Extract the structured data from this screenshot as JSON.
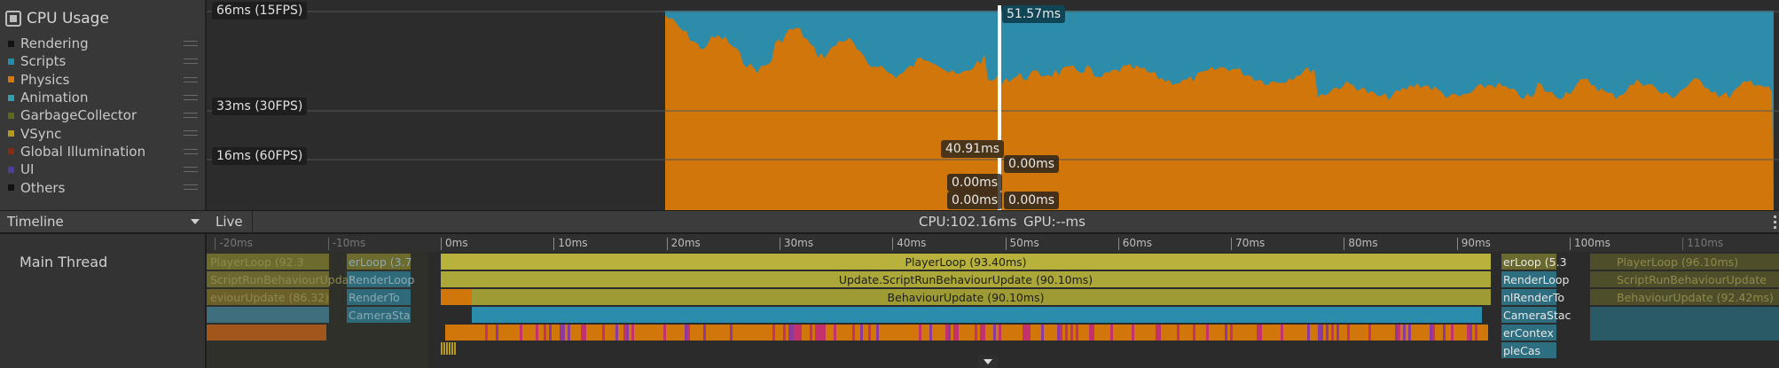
{
  "module": {
    "title": "CPU Usage",
    "icon": "cpu-icon"
  },
  "legend": [
    {
      "label": "Rendering",
      "color": "#111111"
    },
    {
      "label": "Scripts",
      "color": "#1f8fab"
    },
    {
      "label": "Physics",
      "color": "#d3790a"
    },
    {
      "label": "Animation",
      "color": "#30a0b0"
    },
    {
      "label": "GarbageCollector",
      "color": "#5d6a1e"
    },
    {
      "label": "VSync",
      "color": "#b59a1c"
    },
    {
      "label": "Global Illumination",
      "color": "#8b2a12"
    },
    {
      "label": "UI",
      "color": "#4b3e9e"
    },
    {
      "label": "Others",
      "color": "#111111"
    }
  ],
  "chart": {
    "gridlines": [
      {
        "label": "66ms (15FPS)",
        "ms": 66
      },
      {
        "label": "33ms (30FPS)",
        "ms": 33
      },
      {
        "label": "16ms (60FPS)",
        "ms": 16
      }
    ],
    "selection_labels": {
      "scripts": "51.57ms",
      "physics": "40.91ms",
      "zero_a": "0.00ms",
      "zero_b": "0.00ms",
      "zero_c": "0.00ms",
      "zero_d": "0.00ms"
    },
    "colors": {
      "scripts": "#2e8cab",
      "physics": "#d0760a",
      "background": "#2c2c2c",
      "selection": "#ffffff"
    }
  },
  "toolbar": {
    "view_mode": "Timeline",
    "live_label": "Live",
    "cpu_label": "CPU:102.16ms",
    "gpu_label": "GPU:--ms"
  },
  "timeline": {
    "thread_name": "Main Thread",
    "ticks": [
      "-20ms",
      "-10ms",
      "0ms",
      "10ms",
      "20ms",
      "30ms",
      "40ms",
      "50ms",
      "60ms",
      "70ms",
      "80ms",
      "90ms",
      "100ms",
      "110ms"
    ],
    "markers": [
      {
        "label": "PlayerLoop (93.40ms)",
        "color": "#b8b23c"
      },
      {
        "label": "Update.ScriptRunBehaviourUpdate (90.10ms)",
        "color": "#aba738"
      },
      {
        "label": "BehaviourUpdate (90.10ms)",
        "color": "#9f9b34"
      }
    ],
    "next_frame_labels": [
      "erLoop (5.3",
      "RenderLoop",
      "nlRenderTo",
      "CameraStac",
      "erContex",
      "pleCas"
    ],
    "prev_frame_labels": [
      "PlayerLoop (92.3",
      "ScriptRunBehaviourUpdat",
      "eviourUpdate (86.32)",
      "erLoop (3.7",
      "RenderLoop",
      "RenderTo",
      "CameraSta"
    ],
    "ghost_labels": [
      "PlayerLoop (96.10ms)",
      "ScriptRunBehaviourUpdate",
      "BehaviourUpdate (92.42ms)"
    ]
  }
}
